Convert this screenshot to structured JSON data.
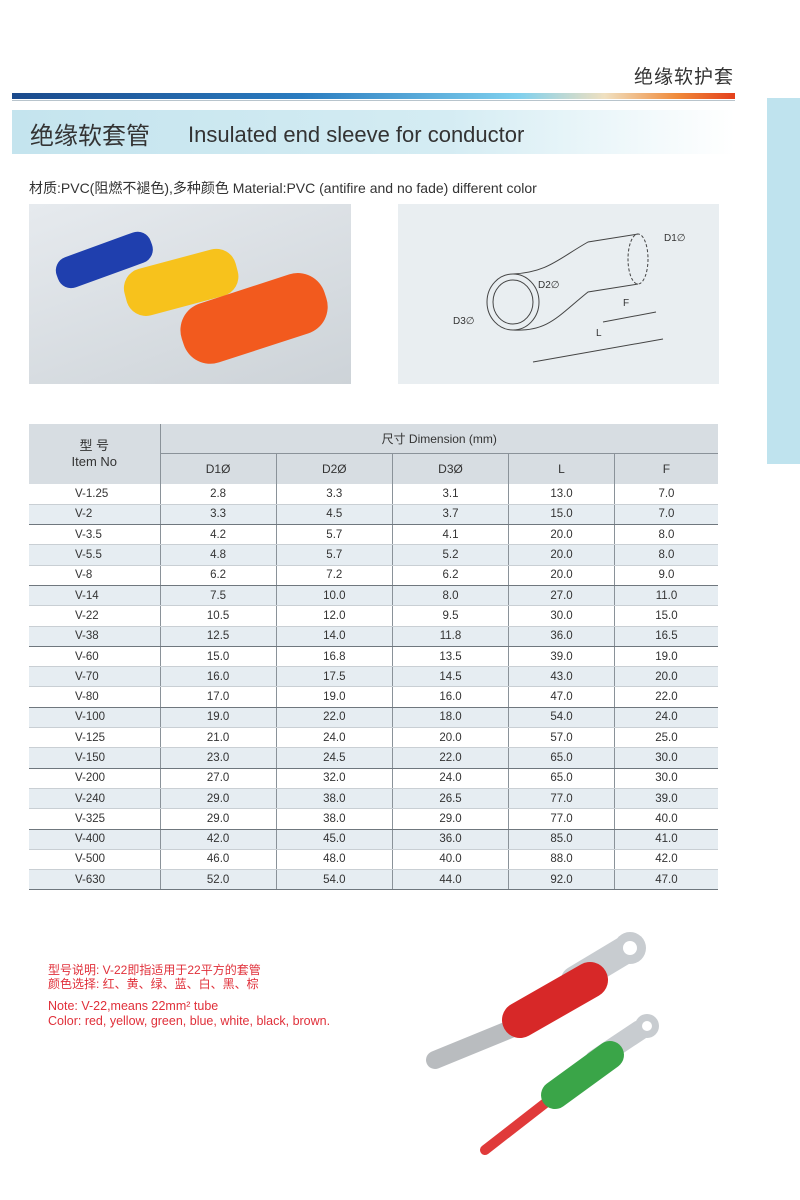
{
  "header": {
    "category": "绝缘软护套",
    "title_cn": "绝缘软套管",
    "title_en": "Insulated end sleeve for conductor"
  },
  "material": "材质:PVC(阻燃不褪色),多种颜色  Material:PVC (antifire and no fade) different color",
  "diagram": {
    "d1": "D1∅",
    "d2": "D2∅",
    "d3": "D3∅",
    "f": "F",
    "l": "L"
  },
  "table": {
    "item_cn": "型  号",
    "item_en": "Item No",
    "dimension": "尺寸 Dimension  (mm)",
    "columns": [
      "D1Ø",
      "D2Ø",
      "D3Ø",
      "L",
      "F"
    ],
    "rows": [
      [
        "V-1.25",
        "2.8",
        "3.3",
        "3.1",
        "13.0",
        "7.0"
      ],
      [
        "V-2",
        "3.3",
        "4.5",
        "3.7",
        "15.0",
        "7.0"
      ],
      [
        "V-3.5",
        "4.2",
        "5.7",
        "4.1",
        "20.0",
        "8.0"
      ],
      [
        "V-5.5",
        "4.8",
        "5.7",
        "5.2",
        "20.0",
        "8.0"
      ],
      [
        "V-8",
        "6.2",
        "7.2",
        "6.2",
        "20.0",
        "9.0"
      ],
      [
        "V-14",
        "7.5",
        "10.0",
        "8.0",
        "27.0",
        "11.0"
      ],
      [
        "V-22",
        "10.5",
        "12.0",
        "9.5",
        "30.0",
        "15.0"
      ],
      [
        "V-38",
        "12.5",
        "14.0",
        "11.8",
        "36.0",
        "16.5"
      ],
      [
        "V-60",
        "15.0",
        "16.8",
        "13.5",
        "39.0",
        "19.0"
      ],
      [
        "V-70",
        "16.0",
        "17.5",
        "14.5",
        "43.0",
        "20.0"
      ],
      [
        "V-80",
        "17.0",
        "19.0",
        "16.0",
        "47.0",
        "22.0"
      ],
      [
        "V-100",
        "19.0",
        "22.0",
        "18.0",
        "54.0",
        "24.0"
      ],
      [
        "V-125",
        "21.0",
        "24.0",
        "20.0",
        "57.0",
        "25.0"
      ],
      [
        "V-150",
        "23.0",
        "24.5",
        "22.0",
        "65.0",
        "30.0"
      ],
      [
        "V-200",
        "27.0",
        "32.0",
        "24.0",
        "65.0",
        "30.0"
      ],
      [
        "V-240",
        "29.0",
        "38.0",
        "26.5",
        "77.0",
        "39.0"
      ],
      [
        "V-325",
        "29.0",
        "38.0",
        "29.0",
        "77.0",
        "40.0"
      ],
      [
        "V-400",
        "42.0",
        "45.0",
        "36.0",
        "85.0",
        "41.0"
      ],
      [
        "V-500",
        "46.0",
        "48.0",
        "40.0",
        "88.0",
        "42.0"
      ],
      [
        "V-630",
        "52.0",
        "54.0",
        "44.0",
        "92.0",
        "47.0"
      ]
    ]
  },
  "notes": {
    "cn1": "型号说明: V-22即指适用于22平方的套管",
    "cn2": "颜色选择: 红、黄、绿、蓝、白、黑、棕",
    "en1": "Note:  V-22,means 22mm² tube",
    "en2": "Color: red, yellow, green, blue, white, black, brown."
  },
  "colors": {
    "accent": "#e0303a",
    "title_bg": "#c4e4ee",
    "table_header": "#d7dde2"
  }
}
